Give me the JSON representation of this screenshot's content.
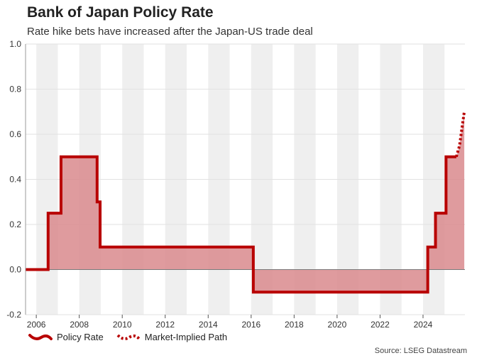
{
  "title": "Bank of Japan Policy Rate",
  "subtitle": "Rate hike bets have increased after the Japan-US trade deal",
  "source": "Source: LSEG Datastream",
  "colors": {
    "line": "#b80000",
    "fill": "#d9898d",
    "band": "#efefef",
    "zero_line": "#7a7a7a",
    "grid": "#e2e2e2"
  },
  "chart_data": {
    "type": "line",
    "title": "Bank of Japan Policy Rate",
    "subtitle": "Rate hike bets have increased after the Japan-US trade deal",
    "xlabel": "",
    "ylabel": "",
    "xlim": [
      2005.5,
      2025.95
    ],
    "ylim": [
      -0.2,
      1.0
    ],
    "x_ticks": [
      2006,
      2008,
      2010,
      2012,
      2014,
      2016,
      2018,
      2020,
      2022,
      2024
    ],
    "x_tick_labels": [
      "2006",
      "2008",
      "2010",
      "2012",
      "2014",
      "2016",
      "2018",
      "2020",
      "2022",
      "2024"
    ],
    "y_ticks": [
      -0.2,
      0.0,
      0.2,
      0.4,
      0.6,
      0.8,
      1.0
    ],
    "y_tick_labels": [
      "-0.2",
      "0.0",
      "0.2",
      "0.4",
      "0.6",
      "0.8",
      "1.0"
    ],
    "shaded_year_bands": [
      2006,
      2008,
      2010,
      2012,
      2014,
      2016,
      2018,
      2020,
      2022,
      2024
    ],
    "series": [
      {
        "name": "Policy Rate",
        "style": "solid",
        "points": [
          [
            2005.5,
            0.0
          ],
          [
            2006.55,
            0.0
          ],
          [
            2006.55,
            0.25
          ],
          [
            2007.15,
            0.25
          ],
          [
            2007.15,
            0.5
          ],
          [
            2008.83,
            0.5
          ],
          [
            2008.83,
            0.3
          ],
          [
            2008.97,
            0.3
          ],
          [
            2008.97,
            0.1
          ],
          [
            2016.1,
            0.1
          ],
          [
            2016.1,
            -0.1
          ],
          [
            2024.22,
            -0.1
          ],
          [
            2024.22,
            0.1
          ],
          [
            2024.58,
            0.1
          ],
          [
            2024.58,
            0.25
          ],
          [
            2025.07,
            0.25
          ],
          [
            2025.07,
            0.5
          ],
          [
            2025.55,
            0.5
          ]
        ]
      },
      {
        "name": "Market-Implied Path",
        "style": "dotted",
        "points": [
          [
            2025.55,
            0.5
          ],
          [
            2025.7,
            0.55
          ],
          [
            2025.8,
            0.62
          ],
          [
            2025.92,
            0.7
          ]
        ]
      }
    ],
    "legend": [
      "Policy Rate",
      "Market-Implied Path"
    ],
    "legend_position": "bottom-left"
  }
}
